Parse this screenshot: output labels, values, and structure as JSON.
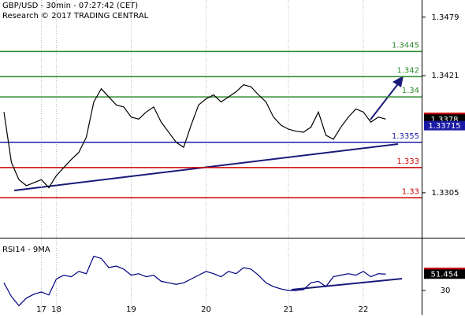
{
  "chart_data": [
    {
      "type": "line",
      "title": "GBP/USD - 30min - 07:27:42 (CET)",
      "subtitle": "Research © 2017 TRADING CENTRAL",
      "categories": [
        null,
        null,
        null,
        null,
        null,
        "17",
        null,
        "18",
        null,
        null,
        null,
        null,
        null,
        null,
        null,
        null,
        null,
        "19",
        null,
        null,
        null,
        null,
        null,
        null,
        null,
        null,
        null,
        "20",
        null,
        null,
        null,
        null,
        null,
        null,
        null,
        null,
        null,
        null,
        "21",
        null,
        null,
        null,
        null,
        null,
        null,
        null,
        null,
        null,
        "22",
        null,
        null,
        null
      ],
      "series": [
        {
          "color": "#000000",
          "values": [
            1.3385,
            1.3335,
            1.3318,
            1.3312,
            1.3315,
            1.3318,
            1.331,
            1.3322,
            1.333,
            1.3338,
            1.3345,
            1.336,
            1.3395,
            1.3408,
            1.34,
            1.3392,
            1.339,
            1.338,
            1.3378,
            1.3385,
            1.339,
            1.3375,
            1.3365,
            1.3355,
            1.335,
            1.3372,
            1.3392,
            1.3398,
            1.3402,
            1.3395,
            1.34,
            1.3405,
            1.3412,
            1.341,
            1.3402,
            1.3395,
            1.338,
            1.3372,
            1.3368,
            1.3366,
            1.3365,
            1.337,
            1.3385,
            1.3362,
            1.3358,
            1.337,
            1.338,
            1.3388,
            1.3385,
            1.3375,
            1.338,
            1.3378
          ]
        }
      ],
      "ylim": [
        1.3262,
        1.3496
      ],
      "yticks": [
        1.3305,
        1.3421,
        1.3479
      ],
      "levels": [
        {
          "value": 1.3445,
          "color": "#2e8b2e"
        },
        {
          "value": 1.342,
          "color": "#2e8b2e"
        },
        {
          "value": 1.34,
          "color": "#2e8b2e"
        },
        {
          "value": 1.3355,
          "color": "#1a1aa6"
        },
        {
          "value": 1.333,
          "color": "#cc0000"
        },
        {
          "value": 1.33,
          "color": "#cc0000"
        }
      ],
      "price_tags": [
        {
          "value": 1.33797,
          "color": "#cc0000"
        },
        {
          "value": 1.3378,
          "color": "#000000"
        },
        {
          "value": 1.33715,
          "color": "#1a1aa6"
        }
      ]
    },
    {
      "type": "line",
      "title": "RSI14 - 9MA",
      "series": [
        {
          "color": "#000080",
          "values": [
            40,
            22,
            10,
            20,
            25,
            28,
            24,
            45,
            50,
            48,
            55,
            52,
            75,
            72,
            60,
            62,
            58,
            50,
            52,
            48,
            50,
            42,
            40,
            38,
            40,
            45,
            50,
            55,
            52,
            48,
            55,
            52,
            60,
            58,
            50,
            40,
            35,
            32,
            30,
            30,
            31,
            40,
            42,
            35,
            48,
            50,
            52,
            50,
            55,
            48,
            52,
            51.454
          ]
        }
      ],
      "ylim": [
        0,
        91
      ],
      "yticks": [
        30
      ],
      "price_tags": [
        {
          "value": 53.8086,
          "color": "#cc0000"
        },
        {
          "value": 51.454,
          "color": "#000000"
        }
      ]
    }
  ]
}
